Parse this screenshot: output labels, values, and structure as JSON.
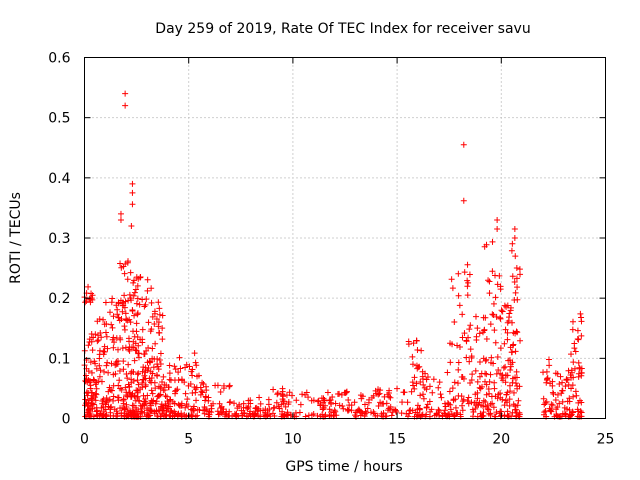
{
  "chart_data": {
    "type": "scatter",
    "title": "Day 259 of 2019, Rate Of TEC Index for receiver savu",
    "xlabel": "GPS time / hours",
    "ylabel": "ROTI / TECUs",
    "xlim": [
      0,
      25
    ],
    "ylim": [
      0,
      0.6
    ],
    "xticks": [
      0,
      5,
      10,
      15,
      20,
      25
    ],
    "yticks": [
      0,
      0.1,
      0.2,
      0.3,
      0.4,
      0.5,
      0.6
    ],
    "grid": true,
    "legend": "none",
    "marker": "+",
    "color": "#ff0000",
    "highlight_points": [
      {
        "x": 1.95,
        "y": 0.54
      },
      {
        "x": 1.95,
        "y": 0.52
      },
      {
        "x": 2.3,
        "y": 0.39
      },
      {
        "x": 2.3,
        "y": 0.375
      },
      {
        "x": 2.3,
        "y": 0.356
      },
      {
        "x": 2.25,
        "y": 0.32
      },
      {
        "x": 1.75,
        "y": 0.34
      },
      {
        "x": 1.75,
        "y": 0.33
      },
      {
        "x": 18.2,
        "y": 0.455
      },
      {
        "x": 18.2,
        "y": 0.362
      },
      {
        "x": 19.8,
        "y": 0.33
      },
      {
        "x": 19.8,
        "y": 0.315
      },
      {
        "x": 20.65,
        "y": 0.315
      },
      {
        "x": 20.65,
        "y": 0.3
      }
    ],
    "envelope": [
      {
        "x0": 0.0,
        "x1": 0.4,
        "ymax": 0.22,
        "density": 70
      },
      {
        "x0": 0.4,
        "x1": 1.0,
        "ymax": 0.17,
        "density": 60
      },
      {
        "x0": 1.0,
        "x1": 1.6,
        "ymax": 0.2,
        "density": 60
      },
      {
        "x0": 1.6,
        "x1": 2.2,
        "ymax": 0.27,
        "density": 90
      },
      {
        "x0": 2.2,
        "x1": 2.6,
        "ymax": 0.25,
        "density": 80
      },
      {
        "x0": 2.6,
        "x1": 3.2,
        "ymax": 0.24,
        "density": 80
      },
      {
        "x0": 3.2,
        "x1": 3.8,
        "ymax": 0.2,
        "density": 70
      },
      {
        "x0": 3.8,
        "x1": 4.5,
        "ymax": 0.09,
        "density": 50
      },
      {
        "x0": 4.5,
        "x1": 5.2,
        "ymax": 0.11,
        "density": 40
      },
      {
        "x0": 5.2,
        "x1": 5.6,
        "ymax": 0.12,
        "density": 20
      },
      {
        "x0": 5.6,
        "x1": 7.0,
        "ymax": 0.06,
        "density": 50
      },
      {
        "x0": 7.0,
        "x1": 9.0,
        "ymax": 0.035,
        "density": 60
      },
      {
        "x0": 9.0,
        "x1": 10.0,
        "ymax": 0.05,
        "density": 40
      },
      {
        "x0": 10.0,
        "x1": 13.5,
        "ymax": 0.045,
        "density": 90
      },
      {
        "x0": 13.5,
        "x1": 15.5,
        "ymax": 0.05,
        "density": 50
      },
      {
        "x0": 15.5,
        "x1": 16.2,
        "ymax": 0.13,
        "density": 40
      },
      {
        "x0": 16.2,
        "x1": 17.5,
        "ymax": 0.08,
        "density": 50
      },
      {
        "x0": 17.5,
        "x1": 18.5,
        "ymax": 0.27,
        "density": 60
      },
      {
        "x0": 18.5,
        "x1": 19.2,
        "ymax": 0.17,
        "density": 50
      },
      {
        "x0": 19.2,
        "x1": 20.0,
        "ymax": 0.3,
        "density": 70
      },
      {
        "x0": 20.0,
        "x1": 20.4,
        "ymax": 0.2,
        "density": 40
      },
      {
        "x0": 20.4,
        "x1": 20.9,
        "ymax": 0.3,
        "density": 60
      },
      {
        "x0": 22.0,
        "x1": 22.6,
        "ymax": 0.1,
        "density": 30
      },
      {
        "x0": 22.6,
        "x1": 23.3,
        "ymax": 0.09,
        "density": 40
      },
      {
        "x0": 23.3,
        "x1": 23.9,
        "ymax": 0.18,
        "density": 50
      }
    ]
  }
}
